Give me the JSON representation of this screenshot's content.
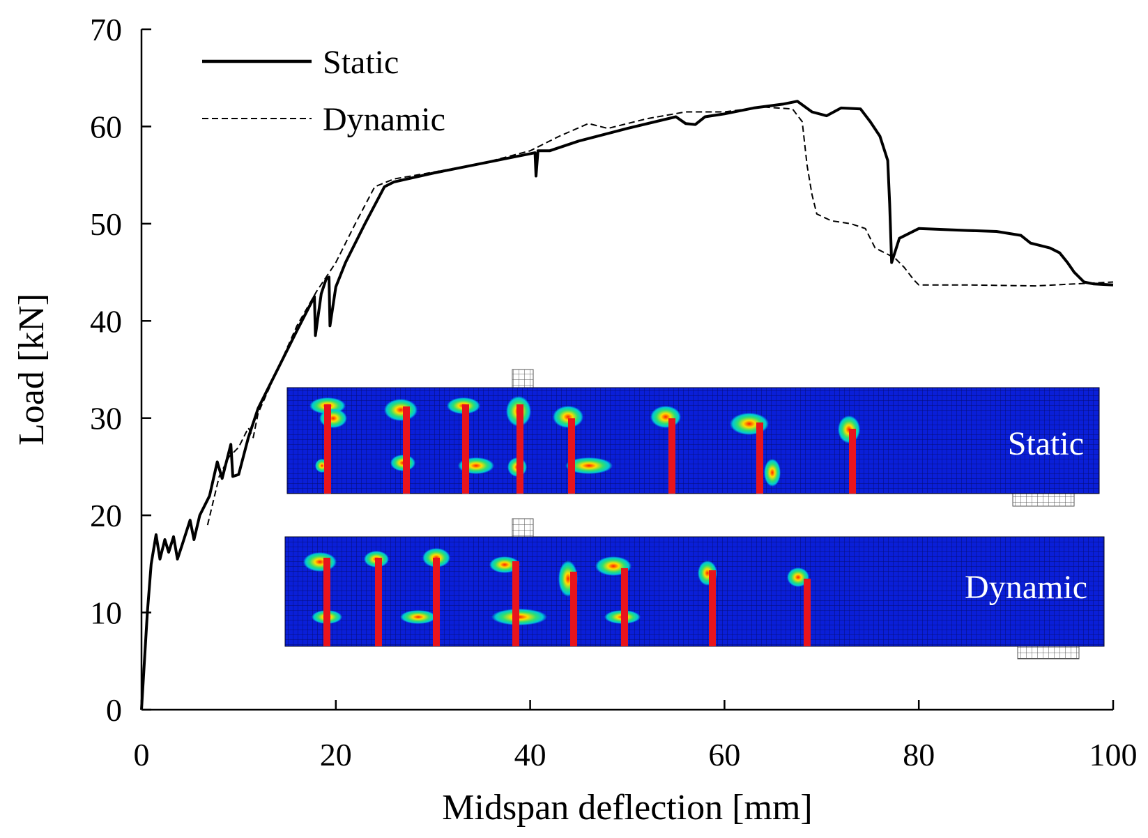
{
  "chart_data": {
    "type": "line",
    "title": "",
    "xlabel": "Midspan deflection [mm]",
    "ylabel": "Load [kN]",
    "xlim": [
      0,
      100
    ],
    "ylim": [
      0,
      70
    ],
    "x_ticks": [
      0,
      20,
      40,
      60,
      80,
      100
    ],
    "y_ticks": [
      0,
      10,
      20,
      30,
      40,
      50,
      60,
      70
    ],
    "grid": false,
    "legend_position": "top-left",
    "series": [
      {
        "name": "Static",
        "style": "solid",
        "points": [
          [
            0,
            0
          ],
          [
            0.6,
            10
          ],
          [
            1.0,
            15
          ],
          [
            1.5,
            18
          ],
          [
            1.9,
            15.5
          ],
          [
            2.4,
            17.5
          ],
          [
            2.8,
            16.2
          ],
          [
            3.3,
            17.8
          ],
          [
            3.7,
            15.5
          ],
          [
            4.2,
            17
          ],
          [
            5.0,
            19.5
          ],
          [
            5.4,
            17.5
          ],
          [
            6.0,
            20
          ],
          [
            7.0,
            22
          ],
          [
            7.8,
            25.5
          ],
          [
            8.3,
            23.8
          ],
          [
            9.2,
            27.3
          ],
          [
            9.4,
            24
          ],
          [
            10.0,
            24.2
          ],
          [
            11.0,
            28
          ],
          [
            12,
            31
          ],
          [
            14,
            35
          ],
          [
            16,
            39
          ],
          [
            17.8,
            42.5
          ],
          [
            17.9,
            38.5
          ],
          [
            18.5,
            42.8
          ],
          [
            19,
            44.3
          ],
          [
            19.3,
            44.5
          ],
          [
            19.4,
            39.5
          ],
          [
            20.0,
            43.5
          ],
          [
            21,
            46
          ],
          [
            23,
            50
          ],
          [
            25,
            53.8
          ],
          [
            26,
            54.3
          ],
          [
            30,
            55.2
          ],
          [
            35,
            56.2
          ],
          [
            40.5,
            57.3
          ],
          [
            40.6,
            54.9
          ],
          [
            40.8,
            57.5
          ],
          [
            42,
            57.5
          ],
          [
            45,
            58.5
          ],
          [
            50,
            59.8
          ],
          [
            55,
            61
          ],
          [
            56,
            60.3
          ],
          [
            57,
            60.2
          ],
          [
            58,
            61
          ],
          [
            60,
            61.3
          ],
          [
            63,
            61.9
          ],
          [
            66,
            62.3
          ],
          [
            67.5,
            62.6
          ],
          [
            69,
            61.5
          ],
          [
            70.5,
            61.1
          ],
          [
            72,
            61.9
          ],
          [
            74,
            61.8
          ],
          [
            75,
            60.5
          ],
          [
            76,
            59
          ],
          [
            76.8,
            56.5
          ],
          [
            77.0,
            52
          ],
          [
            77.2,
            46
          ],
          [
            78.0,
            48.5
          ],
          [
            80,
            49.5
          ],
          [
            85,
            49.3
          ],
          [
            88,
            49.2
          ],
          [
            90.5,
            48.8
          ],
          [
            91.5,
            48
          ],
          [
            93.5,
            47.5
          ],
          [
            94.5,
            47
          ],
          [
            95.3,
            46
          ],
          [
            96,
            45
          ],
          [
            97,
            44
          ],
          [
            98,
            43.8
          ],
          [
            100,
            43.7
          ]
        ]
      },
      {
        "name": "Dynamic",
        "style": "dashed",
        "points": [
          [
            6.8,
            19
          ],
          [
            8,
            24
          ],
          [
            9,
            26
          ],
          [
            10,
            27
          ],
          [
            11,
            29
          ],
          [
            11.5,
            28
          ],
          [
            12,
            30.5
          ],
          [
            14,
            35
          ],
          [
            16,
            39.5
          ],
          [
            18,
            43
          ],
          [
            20,
            46
          ],
          [
            22,
            50
          ],
          [
            24,
            53.8
          ],
          [
            26,
            54.6
          ],
          [
            30,
            55.3
          ],
          [
            35,
            56.2
          ],
          [
            40,
            57.5
          ],
          [
            43,
            59
          ],
          [
            46,
            60.3
          ],
          [
            48,
            59.8
          ],
          [
            52,
            60.8
          ],
          [
            56,
            61.5
          ],
          [
            60,
            61.5
          ],
          [
            64,
            62
          ],
          [
            67,
            61.8
          ],
          [
            68,
            60.5
          ],
          [
            68.5,
            56
          ],
          [
            69,
            53
          ],
          [
            69.5,
            51
          ],
          [
            71,
            50.3
          ],
          [
            73,
            50
          ],
          [
            74.5,
            49.5
          ],
          [
            75.5,
            47.5
          ],
          [
            77.5,
            46.5
          ],
          [
            78.5,
            45.5
          ],
          [
            79.5,
            44.2
          ],
          [
            80,
            43.7
          ],
          [
            85,
            43.7
          ],
          [
            92,
            43.6
          ],
          [
            96,
            43.8
          ],
          [
            100,
            44
          ]
        ]
      }
    ],
    "insets": [
      {
        "label": "Static"
      },
      {
        "label": "Dynamic"
      }
    ]
  }
}
